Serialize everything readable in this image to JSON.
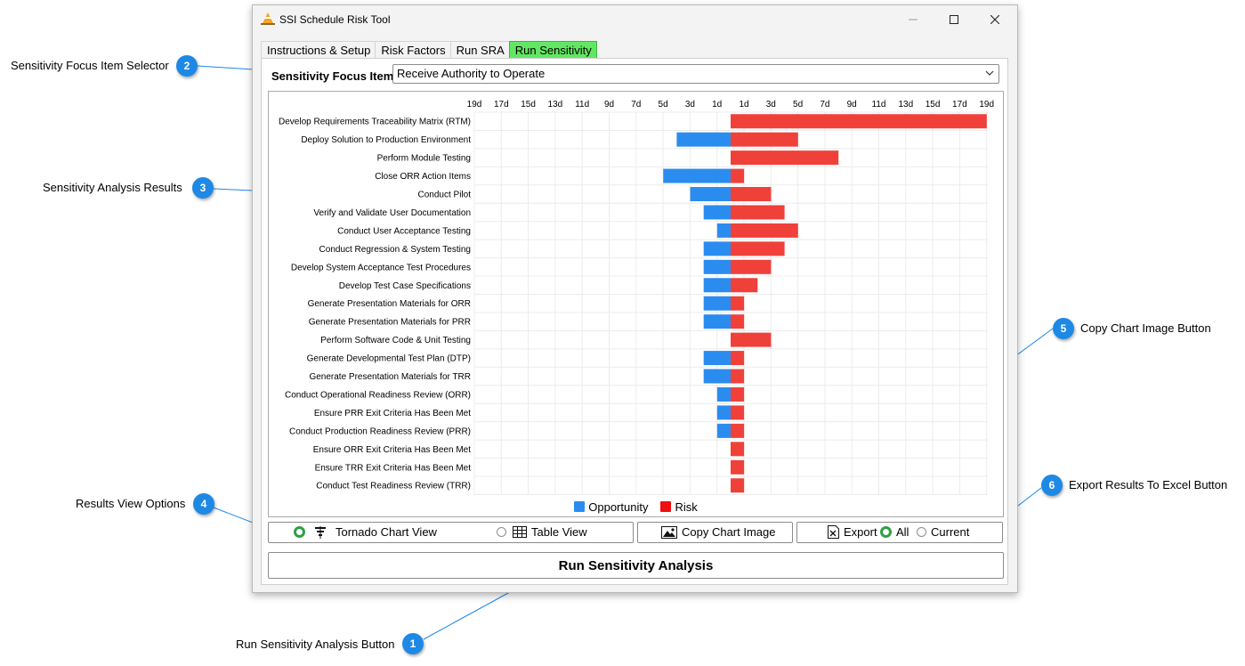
{
  "window": {
    "title": "SSI Schedule Risk Tool",
    "tabs": [
      {
        "label": "Instructions & Setup"
      },
      {
        "label": "Risk Factors"
      },
      {
        "label": "Run SRA"
      },
      {
        "label": "Run Sensitivity"
      }
    ],
    "active_tab": "Run Sensitivity"
  },
  "focus": {
    "label": "Sensitivity Focus Item:",
    "value": "Receive Authority to Operate"
  },
  "callouts": [
    {
      "number": "2",
      "text": "Sensitivity Focus Item Selector"
    },
    {
      "number": "3",
      "text": "Sensitivity Analysis Results"
    },
    {
      "number": "4",
      "text": "Results View Options"
    },
    {
      "number": "5",
      "text": "Copy Chart Image Button"
    },
    {
      "number": "6",
      "text": "Export Results To Excel Button"
    },
    {
      "number": "1",
      "text": "Run Sensitivity Analysis Button"
    }
  ],
  "chart_data": {
    "type": "bar",
    "orientation": "horizontal-tornado",
    "x_tick_labels": [
      "19d",
      "17d",
      "15d",
      "13d",
      "11d",
      "9d",
      "7d",
      "5d",
      "3d",
      "1d",
      "1d",
      "3d",
      "5d",
      "7d",
      "9d",
      "11d",
      "13d",
      "15d",
      "17d",
      "19d"
    ],
    "xlim": [
      -19,
      19
    ],
    "grid": true,
    "legend_position": "bottom",
    "categories": [
      "Develop Requirements Traceability Matrix (RTM)",
      "Deploy Solution to Production Environment",
      "Perform Module Testing",
      "Close ORR Action Items",
      "Conduct Pilot",
      "Verify and Validate User Documentation",
      "Conduct User Acceptance Testing",
      "Conduct Regression & System Testing",
      "Develop System Acceptance Test Procedures",
      "Develop Test Case Specifications",
      "Generate Presentation Materials for ORR",
      "Generate Presentation Materials for PRR",
      "Perform Software Code & Unit Testing",
      "Generate Developmental Test Plan (DTP)",
      "Generate Presentation Materials for TRR",
      "Conduct Operational Readiness Review (ORR)",
      "Ensure PRR Exit Criteria Has Been Met",
      "Conduct Production Readiness Review (PRR)",
      "Ensure ORR Exit Criteria Has Been Met",
      "Ensure TRR Exit Criteria Has Been Met",
      "Conduct Test Readiness Review (TRR)"
    ],
    "series": [
      {
        "name": "Opportunity",
        "color": "#2b8cf0",
        "values": [
          0,
          -4,
          0,
          -5,
          -3,
          -2,
          -1,
          -2,
          -2,
          -2,
          -2,
          -2,
          0,
          -2,
          -2,
          -1,
          -1,
          -1,
          0,
          0,
          0
        ]
      },
      {
        "name": "Risk",
        "color": "#f0403a",
        "values": [
          19,
          5,
          8,
          1,
          3,
          4,
          5,
          4,
          3,
          2,
          1,
          1,
          3,
          1,
          1,
          1,
          1,
          1,
          1,
          1,
          1
        ]
      }
    ]
  },
  "view_options": {
    "tornado_label": "Tornado Chart View",
    "table_label": "Table View",
    "selected": "tornado",
    "tornado_icon": "tornado-chart-icon",
    "table_icon": "table-grid-icon"
  },
  "copy": {
    "label": "Copy Chart Image",
    "icon": "image-icon"
  },
  "export": {
    "label": "Export",
    "icon": "excel-icon",
    "all_label": "All",
    "current_label": "Current",
    "selected": "all"
  },
  "run": {
    "label": "Run Sensitivity Analysis"
  }
}
